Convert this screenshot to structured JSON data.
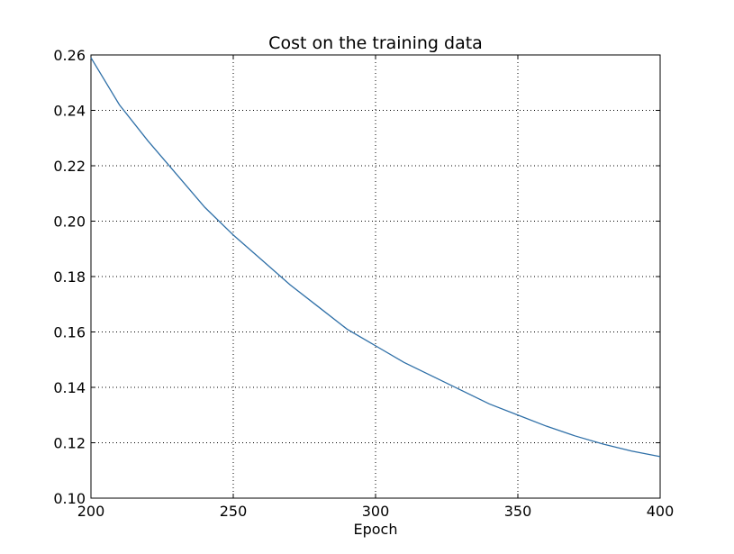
{
  "chart_data": {
    "type": "line",
    "title": "Cost on the training data",
    "xlabel": "Epoch",
    "x": [
      200,
      210,
      220,
      230,
      240,
      250,
      260,
      270,
      280,
      290,
      300,
      310,
      320,
      330,
      340,
      350,
      360,
      370,
      380,
      390,
      400
    ],
    "series": [
      {
        "name": "Cost",
        "color": "#2e6fa7",
        "values": [
          0.259,
          0.242,
          0.229,
          0.217,
          0.205,
          0.195,
          0.186,
          0.177,
          0.169,
          0.161,
          0.155,
          0.149,
          0.144,
          0.139,
          0.134,
          0.13,
          0.126,
          0.1225,
          0.1195,
          0.117,
          0.115
        ]
      }
    ],
    "xlim": [
      200,
      400
    ],
    "xticks": [
      200,
      250,
      300,
      350,
      400
    ],
    "ylim": [
      0.1,
      0.26
    ],
    "yticks": [
      {
        "value": 0.1,
        "label": "0.10"
      },
      0.12,
      0.14,
      0.16,
      0.18,
      {
        "value": 0.2,
        "label": "0.20"
      },
      0.22,
      0.24,
      0.26
    ],
    "grid": true
  }
}
